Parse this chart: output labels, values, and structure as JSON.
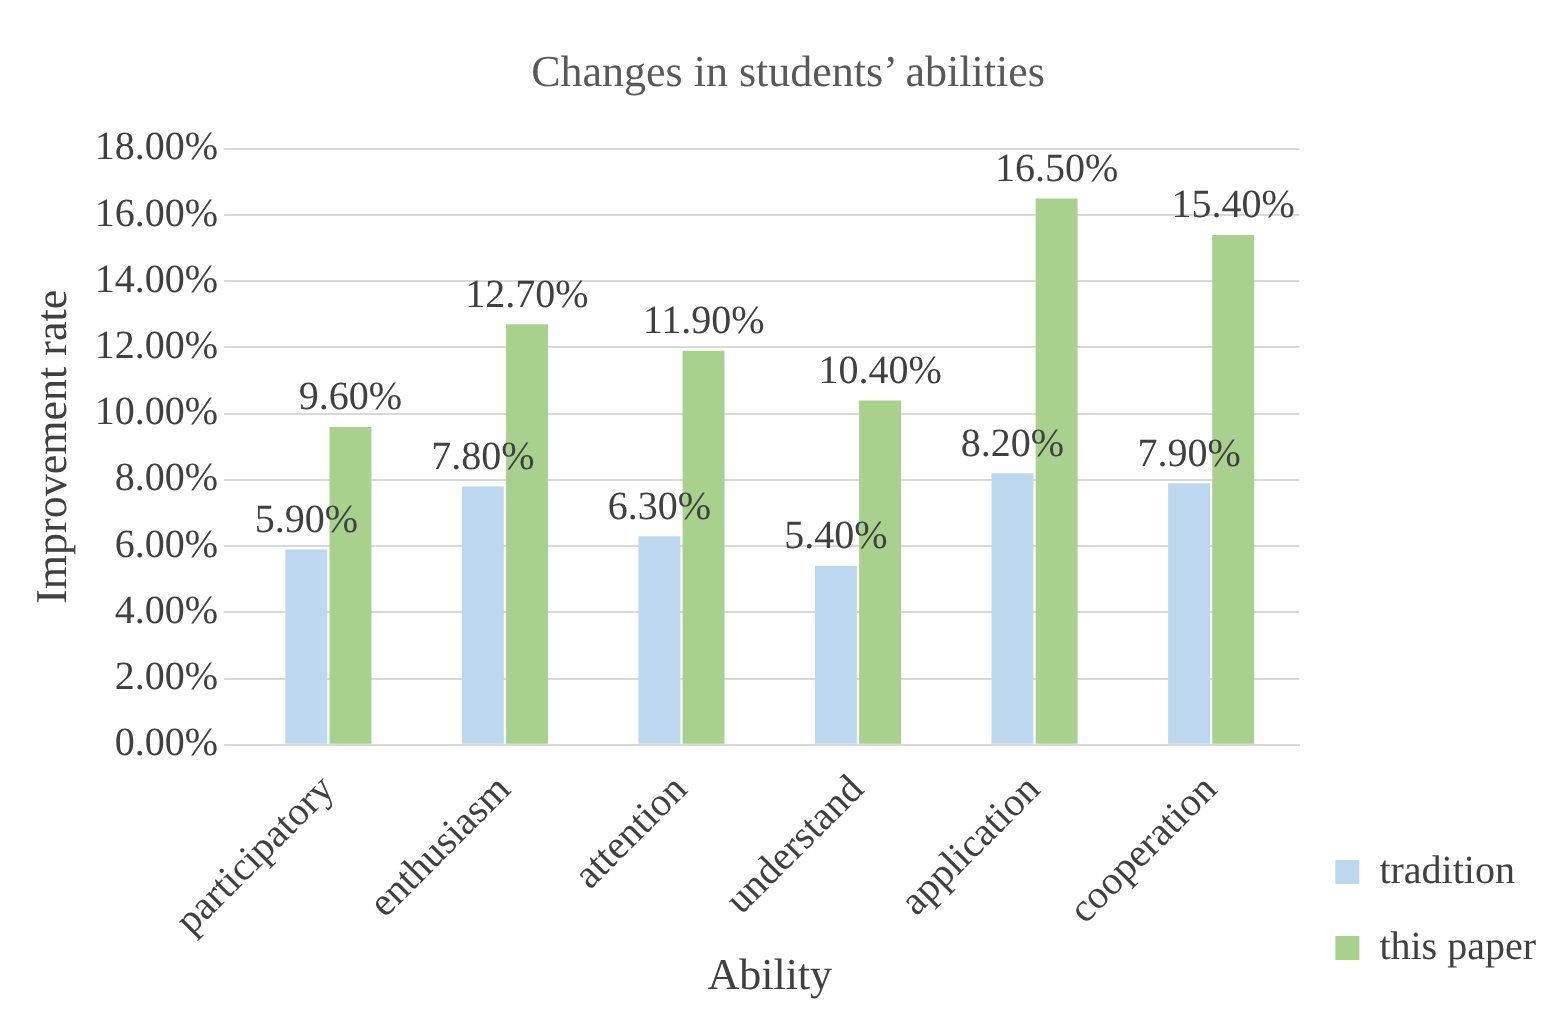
{
  "chart_data": {
    "type": "bar",
    "title": "Changes in students’ abilities",
    "xlabel": "Ability",
    "ylabel": "Improvement rate",
    "categories": [
      "participatory",
      "enthusiasm",
      "attention",
      "understand",
      "application",
      "cooperation"
    ],
    "series": [
      {
        "name": "tradition",
        "color": "#bdd7ee",
        "values": [
          5.9,
          7.8,
          6.3,
          5.4,
          8.2,
          7.9
        ],
        "value_labels": [
          "5.90%",
          "7.80%",
          "6.30%",
          "5.40%",
          "8.20%",
          "7.90%"
        ]
      },
      {
        "name": "this paper",
        "color": "#a9d18e",
        "values": [
          9.6,
          12.7,
          11.9,
          10.4,
          16.5,
          15.4
        ],
        "value_labels": [
          "9.60%",
          "12.70%",
          "11.90%",
          "10.40%",
          "16.50%",
          "15.40%"
        ]
      }
    ],
    "ylim": [
      0,
      18
    ],
    "yticks": [
      {
        "value": 0,
        "label": "0.00%"
      },
      {
        "value": 2,
        "label": "2.00%"
      },
      {
        "value": 4,
        "label": "4.00%"
      },
      {
        "value": 6,
        "label": "6.00%"
      },
      {
        "value": 8,
        "label": "8.00%"
      },
      {
        "value": 10,
        "label": "10.00%"
      },
      {
        "value": 12,
        "label": "12.00%"
      },
      {
        "value": 14,
        "label": "14.00%"
      },
      {
        "value": 16,
        "label": "16.00%"
      },
      {
        "value": 18,
        "label": "18.00%"
      }
    ],
    "grid": "y",
    "legend": "bottom right"
  }
}
